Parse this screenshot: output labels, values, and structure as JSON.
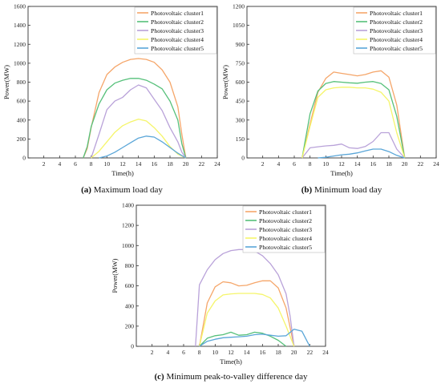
{
  "chart_data": [
    {
      "id": "a",
      "type": "line",
      "caption_tag": "(a)",
      "caption_text": " Maximum load day",
      "xlabel": "Time(h)",
      "ylabel": "Power(MW)",
      "xlim": [
        0,
        24
      ],
      "ylim": [
        0,
        1600
      ],
      "xticks": [
        2,
        4,
        6,
        8,
        10,
        12,
        14,
        16,
        18,
        20,
        22,
        24
      ],
      "yticks": [
        0,
        200,
        400,
        600,
        800,
        1000,
        1200,
        1400,
        1600
      ],
      "legend_position": "top-right",
      "series": [
        {
          "name": "Photovoltaic cluster1",
          "color": "#F5A66A",
          "x": [
            7,
            7.5,
            8,
            9,
            10,
            11,
            12,
            13,
            14,
            15,
            16,
            17,
            18,
            19,
            19.5,
            20
          ],
          "y": [
            0,
            100,
            320,
            690,
            880,
            960,
            1010,
            1040,
            1050,
            1040,
            1010,
            930,
            800,
            540,
            250,
            0
          ]
        },
        {
          "name": "Photovoltaic cluster2",
          "color": "#56C07A",
          "x": [
            7,
            7.5,
            8,
            9,
            10,
            11,
            12,
            13,
            14,
            15,
            16,
            17,
            18,
            19,
            19.5,
            20
          ],
          "y": [
            0,
            120,
            330,
            570,
            720,
            790,
            820,
            840,
            840,
            820,
            780,
            730,
            600,
            400,
            150,
            0
          ]
        },
        {
          "name": "Photovoltaic cluster3",
          "color": "#B9A2D9",
          "x": [
            8,
            9,
            10,
            11,
            12,
            13,
            14,
            15,
            16,
            17,
            18,
            19,
            19.5,
            20
          ],
          "y": [
            0,
            250,
            510,
            600,
            640,
            720,
            770,
            740,
            620,
            500,
            320,
            170,
            60,
            0
          ]
        },
        {
          "name": "Photovoltaic cluster4",
          "color": "#F5F56A",
          "x": [
            8,
            9,
            10,
            11,
            12,
            13,
            14,
            15,
            16,
            17,
            18,
            19,
            20
          ],
          "y": [
            0,
            70,
            170,
            270,
            340,
            380,
            410,
            390,
            320,
            230,
            120,
            40,
            0
          ]
        },
        {
          "name": "Photovoltaic cluster5",
          "color": "#5AA6D8",
          "x": [
            9,
            10,
            11,
            12,
            13,
            14,
            15,
            16,
            17,
            18,
            19,
            20
          ],
          "y": [
            0,
            20,
            60,
            110,
            160,
            210,
            230,
            220,
            170,
            110,
            50,
            0
          ]
        }
      ]
    },
    {
      "id": "b",
      "type": "line",
      "caption_tag": "(b)",
      "caption_text": " Minimum load day",
      "xlabel": "Time(h)",
      "ylabel": "Power(MW)",
      "xlim": [
        0,
        24
      ],
      "ylim": [
        0,
        1200
      ],
      "xticks": [
        2,
        4,
        6,
        8,
        10,
        12,
        14,
        16,
        18,
        20,
        22,
        24
      ],
      "yticks": [
        0,
        150,
        300,
        450,
        600,
        750,
        900,
        1050,
        1200
      ],
      "legend_position": "top-right",
      "series": [
        {
          "name": "Photovoltaic cluster1",
          "color": "#F5A66A",
          "x": [
            7,
            8,
            9,
            10,
            11,
            12,
            13,
            14,
            15,
            16,
            17,
            18,
            19,
            20
          ],
          "y": [
            0,
            270,
            520,
            630,
            680,
            670,
            660,
            650,
            660,
            680,
            690,
            640,
            420,
            0
          ]
        },
        {
          "name": "Photovoltaic cluster2",
          "color": "#56C07A",
          "x": [
            7,
            8,
            9,
            10,
            11,
            12,
            13,
            14,
            15,
            16,
            17,
            18,
            19,
            20
          ],
          "y": [
            0,
            350,
            530,
            590,
            605,
            600,
            595,
            592,
            600,
            605,
            590,
            540,
            330,
            0
          ]
        },
        {
          "name": "Photovoltaic cluster3",
          "color": "#B9A2D9",
          "x": [
            7,
            8,
            9,
            10,
            11,
            12,
            13,
            14,
            15,
            16,
            17,
            18,
            19,
            20
          ],
          "y": [
            0,
            80,
            88,
            95,
            100,
            110,
            80,
            75,
            90,
            130,
            200,
            200,
            70,
            0
          ]
        },
        {
          "name": "Photovoltaic cluster4",
          "color": "#F5F56A",
          "x": [
            7,
            8,
            9,
            10,
            11,
            12,
            13,
            14,
            15,
            16,
            17,
            18,
            19,
            20
          ],
          "y": [
            0,
            250,
            480,
            540,
            555,
            560,
            560,
            555,
            555,
            545,
            520,
            450,
            200,
            0
          ]
        },
        {
          "name": "Photovoltaic cluster5",
          "color": "#5AA6D8",
          "x": [
            9,
            10,
            11,
            12,
            13,
            14,
            15,
            16,
            17,
            18,
            19,
            20
          ],
          "y": [
            0,
            5,
            15,
            25,
            30,
            40,
            55,
            70,
            70,
            50,
            20,
            0
          ]
        }
      ]
    },
    {
      "id": "c",
      "type": "line",
      "caption_tag": "(c)",
      "caption_text": " Minimum peak-to-valley difference day",
      "xlabel": "Time(h)",
      "ylabel": "Power(MW)",
      "xlim": [
        0,
        24
      ],
      "ylim": [
        0,
        1400
      ],
      "xticks": [
        2,
        4,
        6,
        8,
        10,
        12,
        14,
        16,
        18,
        20,
        22,
        24
      ],
      "yticks": [
        0,
        200,
        400,
        600,
        800,
        1000,
        1200,
        1400
      ],
      "legend_position": "top-right",
      "series": [
        {
          "name": "Photovoltaic cluster1",
          "color": "#F5A66A",
          "x": [
            8,
            9,
            10,
            11,
            12,
            13,
            14,
            15,
            16,
            17,
            18,
            19,
            20
          ],
          "y": [
            0,
            430,
            590,
            640,
            630,
            600,
            605,
            630,
            650,
            650,
            580,
            380,
            0
          ]
        },
        {
          "name": "Photovoltaic cluster2",
          "color": "#56C07A",
          "x": [
            8,
            9,
            10,
            11,
            12,
            13,
            14,
            15,
            16,
            17,
            18,
            19
          ],
          "y": [
            0,
            80,
            105,
            115,
            140,
            110,
            115,
            140,
            130,
            100,
            60,
            0
          ]
        },
        {
          "name": "Photovoltaic cluster3",
          "color": "#B9A2D9",
          "x": [
            7.5,
            8,
            9,
            10,
            11,
            12,
            13,
            14,
            15,
            16,
            17,
            18,
            19,
            19.5,
            20
          ],
          "y": [
            0,
            610,
            760,
            860,
            920,
            950,
            960,
            960,
            945,
            900,
            820,
            710,
            520,
            300,
            0
          ]
        },
        {
          "name": "Photovoltaic cluster4",
          "color": "#F5F56A",
          "x": [
            8,
            9,
            10,
            11,
            12,
            13,
            14,
            15,
            16,
            17,
            18,
            19,
            20
          ],
          "y": [
            0,
            330,
            450,
            510,
            520,
            525,
            525,
            525,
            515,
            480,
            380,
            200,
            0
          ]
        },
        {
          "name": "Photovoltaic cluster5",
          "color": "#5AA6D8",
          "x": [
            8,
            9,
            10,
            11,
            12,
            13,
            14,
            15,
            16,
            17,
            18,
            19,
            20,
            21,
            22
          ],
          "y": [
            0,
            50,
            70,
            85,
            90,
            95,
            100,
            115,
            120,
            110,
            100,
            105,
            170,
            150,
            0
          ]
        }
      ]
    }
  ]
}
